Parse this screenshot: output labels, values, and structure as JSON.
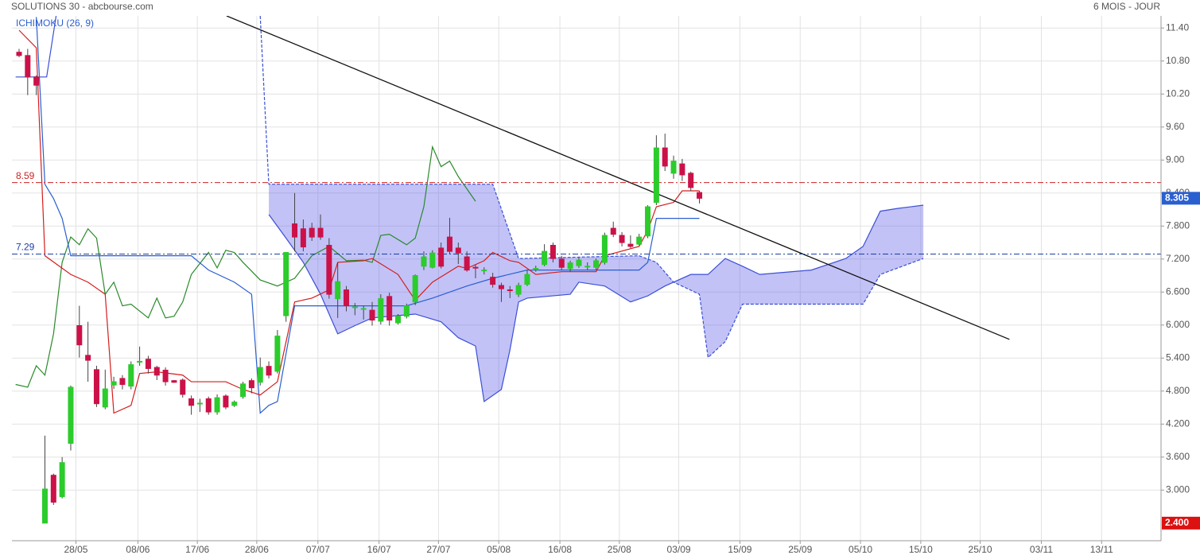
{
  "chart_data": {
    "type": "candlestick",
    "title": "SOLUTIONS 30 - abcbourse.com",
    "period": "6 MOIS - JOUR",
    "indicator": "ICHIMOKU (26, 9)",
    "xlim": [
      -0.83,
      132.6
    ],
    "ylim": [
      2.08,
      11.62
    ],
    "xticks": [
      {
        "value": 6.6,
        "label": "28/05"
      },
      {
        "value": 13.8,
        "label": "08/06"
      },
      {
        "value": 20.7,
        "label": "17/06"
      },
      {
        "value": 27.6,
        "label": "28/06"
      },
      {
        "value": 34.7,
        "label": "07/07"
      },
      {
        "value": 41.8,
        "label": "16/07"
      },
      {
        "value": 48.7,
        "label": "27/07"
      },
      {
        "value": 55.7,
        "label": "05/08"
      },
      {
        "value": 62.8,
        "label": "16/08"
      },
      {
        "value": 69.7,
        "label": "25/08"
      },
      {
        "value": 76.6,
        "label": "03/09"
      },
      {
        "value": 83.7,
        "label": "15/09"
      },
      {
        "value": 90.7,
        "label": "25/09"
      },
      {
        "value": 97.7,
        "label": "05/10"
      },
      {
        "value": 104.7,
        "label": "15/10"
      },
      {
        "value": 111.6,
        "label": "25/10"
      },
      {
        "value": 118.7,
        "label": "03/11"
      },
      {
        "value": 125.7,
        "label": "13/11"
      }
    ],
    "yticks": [
      {
        "value": 3.0,
        "label": "3.000"
      },
      {
        "value": 3.6,
        "label": "3.600"
      },
      {
        "value": 4.2,
        "label": "4.200"
      },
      {
        "value": 4.8,
        "label": "4.800"
      },
      {
        "value": 5.4,
        "label": "5.400"
      },
      {
        "value": 6.0,
        "label": "6.000"
      },
      {
        "value": 6.6,
        "label": "6.600"
      },
      {
        "value": 7.2,
        "label": "7.200"
      },
      {
        "value": 7.8,
        "label": "7.800"
      },
      {
        "value": 8.4,
        "label": "8.400"
      },
      {
        "value": 9.0,
        "label": "9.00"
      },
      {
        "value": 9.6,
        "label": "9.60"
      },
      {
        "value": 10.2,
        "label": "10.20"
      },
      {
        "value": 10.8,
        "label": "10.80"
      },
      {
        "value": 11.4,
        "label": "11.40"
      }
    ],
    "grid": true,
    "up_color": "#2bcc2b",
    "down_color": "#cc1148",
    "candles": {
      "x": [
        0,
        1,
        2,
        3,
        4,
        5,
        6,
        7,
        8,
        9,
        10,
        11,
        12,
        13,
        14,
        15,
        16,
        17,
        18,
        19,
        20,
        21,
        22,
        23,
        24,
        25,
        26,
        27,
        28,
        29,
        30,
        31,
        32,
        33,
        34,
        35,
        36,
        37,
        38,
        39,
        40,
        41,
        42,
        43,
        44,
        45,
        46,
        47,
        48,
        49,
        50,
        51,
        52,
        53,
        54,
        55,
        56,
        57,
        58,
        59,
        60,
        61,
        62,
        63,
        64,
        65,
        66,
        67,
        68,
        69,
        70,
        71,
        72,
        73,
        74,
        75,
        76,
        77,
        78,
        79
      ],
      "open": [
        10.96,
        10.9,
        10.51,
        2.4,
        3.27,
        2.88,
        3.85,
        5.99,
        5.45,
        5.19,
        4.51,
        4.91,
        5.03,
        4.89,
        5.33,
        5.38,
        5.23,
        5.18,
        4.99,
        5.0,
        4.66,
        4.57,
        4.66,
        4.42,
        4.71,
        4.54,
        4.7,
        4.99,
        4.96,
        5.25,
        5.16,
        6.17,
        7.84,
        7.75,
        7.76,
        7.76,
        7.45,
        6.48,
        6.64,
        6.33,
        6.3,
        6.27,
        6.07,
        6.52,
        6.04,
        6.16,
        6.42,
        7.07,
        7.05,
        7.4,
        7.6,
        7.4,
        7.24,
        7.05,
        7.0,
        6.87,
        6.72,
        6.64,
        6.56,
        6.74,
        7.01,
        7.1,
        7.45,
        7.2,
        7.03,
        7.08,
        7.07,
        7.05,
        7.14,
        7.76,
        7.63,
        7.47,
        7.47,
        7.62,
        8.23,
        9.22,
        8.76,
        8.93,
        8.76,
        8.41
      ],
      "high": [
        11.02,
        11.02,
        10.54,
        3.99,
        3.3,
        3.6,
        4.9,
        6.35,
        6.06,
        5.26,
        5.19,
        5.06,
        5.09,
        5.34,
        5.61,
        5.44,
        5.26,
        5.23,
        5.0,
        5.03,
        4.72,
        4.66,
        4.7,
        4.74,
        4.74,
        4.63,
        4.97,
        5.03,
        5.41,
        5.34,
        5.91,
        7.32,
        8.4,
        7.92,
        7.86,
        8.01,
        7.58,
        7.14,
        6.71,
        6.4,
        6.35,
        6.42,
        6.56,
        6.59,
        6.2,
        6.39,
        6.92,
        7.34,
        7.36,
        7.5,
        7.95,
        7.5,
        7.34,
        7.1,
        7.05,
        6.95,
        6.77,
        6.71,
        6.77,
        7.0,
        7.08,
        7.47,
        7.5,
        7.26,
        7.17,
        7.23,
        7.14,
        7.21,
        7.68,
        7.88,
        7.69,
        7.63,
        7.66,
        8.18,
        9.45,
        9.48,
        9.08,
        9.02,
        8.79,
        8.44
      ],
      "low": [
        10.87,
        10.18,
        10.18,
        2.4,
        2.73,
        2.85,
        3.72,
        5.41,
        4.97,
        4.51,
        4.47,
        4.84,
        4.83,
        4.83,
        5.26,
        5.12,
        5.0,
        4.9,
        4.95,
        4.68,
        4.37,
        4.42,
        4.37,
        4.37,
        4.47,
        4.51,
        4.66,
        4.76,
        4.9,
        5.03,
        5.12,
        6.06,
        7.34,
        7.34,
        7.53,
        7.55,
        6.48,
        6.13,
        6.25,
        6.18,
        6.1,
        5.99,
        6.01,
        5.99,
        6.01,
        6.12,
        6.36,
        7.0,
        7.03,
        7.03,
        7.29,
        7.11,
        6.97,
        6.85,
        6.92,
        6.68,
        6.42,
        6.49,
        6.51,
        6.71,
        6.97,
        7.07,
        7.14,
        7.0,
        6.97,
        7.04,
        7.0,
        7.0,
        7.1,
        7.6,
        7.43,
        7.4,
        7.45,
        7.58,
        8.18,
        8.8,
        8.66,
        8.62,
        8.44,
        8.21
      ],
      "close": [
        10.9,
        10.51,
        10.36,
        3.02,
        2.78,
        3.5,
        4.87,
        5.64,
        5.36,
        4.57,
        4.84,
        4.97,
        4.92,
        5.28,
        5.34,
        5.21,
        5.09,
        4.97,
        4.96,
        4.74,
        4.54,
        4.58,
        4.42,
        4.68,
        4.51,
        4.6,
        4.93,
        4.86,
        5.23,
        5.09,
        5.8,
        7.32,
        7.6,
        7.42,
        7.6,
        7.6,
        6.56,
        6.79,
        6.35,
        6.33,
        6.3,
        6.09,
        6.48,
        6.09,
        6.16,
        6.35,
        6.9,
        7.24,
        7.31,
        7.07,
        7.34,
        7.31,
        7.0,
        7.04,
        7.0,
        6.74,
        6.66,
        6.63,
        6.72,
        6.92,
        7.03,
        7.34,
        7.21,
        7.05,
        7.13,
        7.18,
        7.07,
        7.17,
        7.63,
        7.65,
        7.5,
        7.43,
        7.6,
        8.15,
        9.22,
        8.89,
        8.98,
        8.73,
        8.5,
        8.305
      ]
    },
    "tenkan": {
      "color": "#d41e1e",
      "x": [
        0,
        2,
        3,
        6,
        8,
        10,
        11,
        13,
        14,
        16,
        19,
        20,
        24,
        26,
        28,
        30,
        32,
        34,
        36,
        37,
        40,
        41,
        44,
        46,
        48,
        51,
        52,
        54,
        55,
        57,
        58,
        60,
        63,
        67,
        68,
        72,
        73,
        74,
        76,
        77,
        79
      ],
      "values": [
        11.36,
        11.04,
        7.26,
        6.92,
        6.78,
        6.56,
        4.4,
        4.54,
        5.12,
        5.15,
        5.09,
        4.97,
        4.97,
        4.83,
        4.73,
        4.97,
        6.42,
        6.49,
        6.64,
        7.14,
        7.17,
        7.21,
        6.92,
        6.45,
        6.78,
        7.07,
        7.03,
        7.17,
        7.32,
        7.17,
        7.14,
        6.92,
        6.97,
        6.97,
        7.26,
        7.43,
        7.72,
        8.15,
        8.23,
        8.44,
        8.44
      ]
    },
    "kijun": {
      "color": "#2a5fd0",
      "x": [
        2,
        3,
        4,
        5,
        6,
        20,
        22,
        25,
        27,
        28,
        29,
        30,
        32,
        45,
        48,
        52,
        55,
        59,
        72,
        73,
        74,
        79
      ],
      "values": [
        11.6,
        8.56,
        8.3,
        7.94,
        7.26,
        7.26,
        7.0,
        6.78,
        6.56,
        4.4,
        4.54,
        4.61,
        6.35,
        6.35,
        6.49,
        6.71,
        6.85,
        7.0,
        7.0,
        7.14,
        7.94,
        7.94
      ]
    },
    "chikou": {
      "color": "#2a8a2a",
      "x": [
        -0.4,
        1,
        2,
        3,
        4,
        5,
        6,
        7,
        8,
        9,
        10,
        11,
        12,
        13,
        15,
        16,
        17,
        18,
        19,
        20,
        22,
        23,
        24,
        25,
        26,
        28,
        30,
        32,
        34,
        36,
        38,
        40,
        41,
        42,
        43,
        45,
        46,
        47,
        48,
        49,
        50,
        51,
        53
      ],
      "values": [
        4.92,
        4.87,
        5.26,
        5.09,
        5.84,
        7.14,
        7.6,
        7.46,
        7.75,
        7.58,
        6.56,
        6.78,
        6.35,
        6.38,
        6.13,
        6.49,
        6.13,
        6.16,
        6.42,
        6.92,
        7.32,
        7.04,
        7.36,
        7.32,
        7.14,
        6.82,
        6.71,
        6.85,
        7.26,
        7.43,
        7.17,
        7.18,
        7.14,
        7.63,
        7.65,
        7.46,
        7.58,
        8.15,
        9.24,
        8.88,
        8.98,
        8.7,
        8.25
      ]
    },
    "span_a": {
      "color": "#3b4fd6",
      "x": [
        -0.4,
        3.2,
        4.3,
        null,
        29,
        31,
        33,
        35,
        37,
        39,
        41,
        46,
        49,
        51,
        53,
        54,
        56,
        57,
        58,
        59,
        64,
        65,
        68,
        71,
        73,
        75,
        78,
        80,
        82,
        84,
        86,
        92,
        96,
        98,
        100,
        102,
        105
      ],
      "values": [
        10.51,
        10.51,
        11.62,
        null,
        8.01,
        7.58,
        7.14,
        6.56,
        5.84,
        5.99,
        6.13,
        6.2,
        6.06,
        5.77,
        5.62,
        4.61,
        4.83,
        5.55,
        6.42,
        6.49,
        6.56,
        6.78,
        6.71,
        6.42,
        6.53,
        6.71,
        6.92,
        6.92,
        7.21,
        7.07,
        6.92,
        7.0,
        7.21,
        7.43,
        8.07,
        8.12,
        8.18
      ]
    },
    "span_b": {
      "color": "#3b4fd6",
      "x": [
        28,
        29,
        55,
        58,
        72,
        74,
        76,
        79,
        80,
        82,
        84,
        98,
        100,
        105
      ],
      "values": [
        11.62,
        8.56,
        8.56,
        7.21,
        7.26,
        7.14,
        6.78,
        6.56,
        5.41,
        5.7,
        6.38,
        6.38,
        6.92,
        7.21
      ]
    },
    "cloud_color": "rgba(95,95,235,0.38)",
    "trendline": {
      "color": "#111111",
      "x": [
        24.1,
        115
      ],
      "values": [
        11.62,
        5.74
      ]
    },
    "levels": [
      {
        "value": 8.59,
        "color": "#cc2222"
      },
      {
        "value": 7.29,
        "color": "#1a3fa0"
      }
    ],
    "last_price": 8.305,
    "last_color": "#2a5fd0",
    "min_price": {
      "value": 2.4,
      "label": "2.400"
    },
    "min_color": "#dd1111"
  }
}
